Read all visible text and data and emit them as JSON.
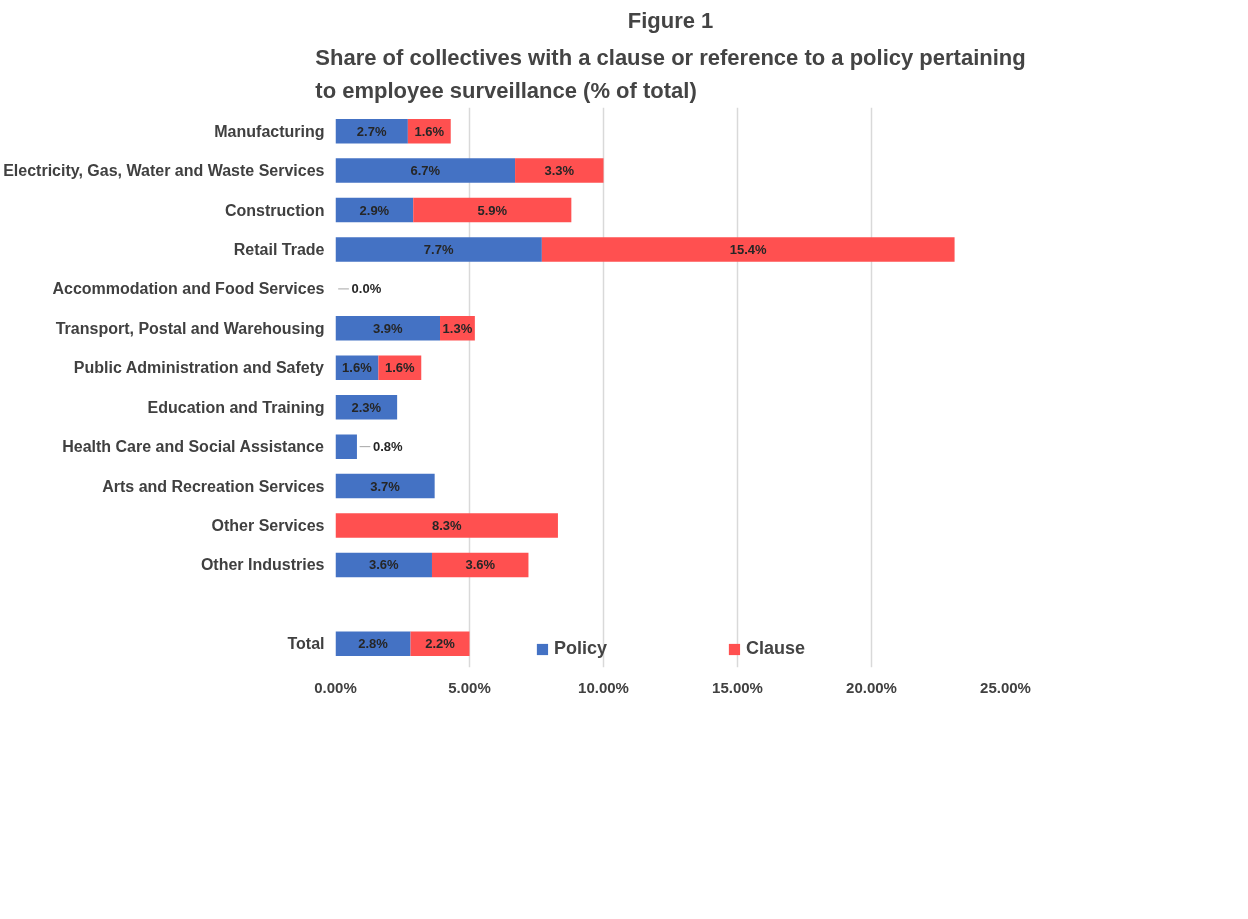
{
  "chart_data": {
    "type": "bar",
    "orientation": "horizontal",
    "stacked": true,
    "title": "Figure 1",
    "subtitle": "Share of collectives with a clause or reference to a policy pertaining to employee surveillance (% of total)",
    "categories": [
      "Manufacturing",
      "Electricity, Gas, Water and Waste Services",
      "Construction",
      "Retail Trade",
      "Accommodation and Food Services",
      "Transport, Postal and Warehousing",
      "Public Administration and Safety",
      "Education and Training",
      "Health Care and Social Assistance",
      "Arts and Recreation Services",
      "Other Services",
      "Other Industries",
      null,
      "Total"
    ],
    "series": [
      {
        "name": "Policy",
        "color": "#4472c4",
        "values": [
          2.7,
          6.7,
          2.9,
          7.7,
          0,
          3.9,
          1.6,
          2.3,
          0.8,
          3.7,
          0,
          3.6,
          null,
          2.8
        ],
        "value_labels": [
          "2.7%",
          "6.7%",
          "2.9%",
          "7.7%",
          "0.0%",
          "3.9%",
          "1.6%",
          "2.3%",
          "0.8%",
          "3.7%",
          null,
          "3.6%",
          null,
          "2.8%"
        ]
      },
      {
        "name": "Clause",
        "color": "#ff5050",
        "values": [
          1.6,
          3.3,
          5.9,
          15.4,
          0,
          1.3,
          1.6,
          0,
          0,
          0,
          8.3,
          3.6,
          null,
          2.2
        ],
        "value_labels": [
          "1.6%",
          "3.3%",
          "5.9%",
          "15.4%",
          null,
          "1.3%",
          "1.6%",
          null,
          null,
          null,
          "8.3%",
          "3.6%",
          null,
          "2.2%"
        ]
      }
    ],
    "xlim": [
      0,
      25
    ],
    "xticks": [
      {
        "value": 0,
        "label": "0.00%"
      },
      {
        "value": 5,
        "label": "5.00%"
      },
      {
        "value": 10,
        "label": "10.00%"
      },
      {
        "value": 15,
        "label": "15.00%"
      },
      {
        "value": 20,
        "label": "20.00%"
      },
      {
        "value": 25,
        "label": "25.00%"
      }
    ],
    "grid": "x",
    "legend": "bottom"
  }
}
